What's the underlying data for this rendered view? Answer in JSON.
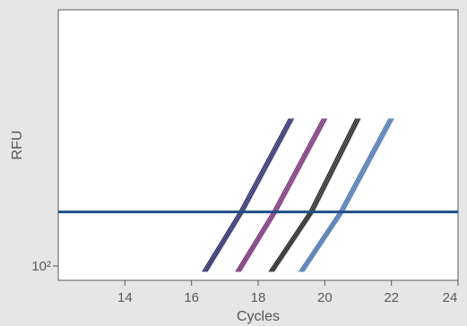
{
  "chart_data": {
    "type": "line",
    "xlabel": "Cycles",
    "ylabel": "RFU",
    "y_scale": "log",
    "xlim": [
      12,
      24
    ],
    "x_ticks": [
      14,
      16,
      18,
      20,
      22,
      24
    ],
    "y_tick": {
      "value": 100,
      "label": "10²"
    },
    "threshold": {
      "y": 270,
      "color": "#1f4f86"
    },
    "grid": false,
    "legend": "none",
    "series": [
      {
        "color": "#14195a",
        "replicates": 6,
        "x": [
          16.4,
          17.5,
          19.0
        ],
        "y": [
          90,
          270,
          1500
        ]
      },
      {
        "color": "#6a1f6a",
        "replicates": 6,
        "x": [
          17.4,
          18.5,
          20.0
        ],
        "y": [
          90,
          270,
          1500
        ]
      },
      {
        "color": "#111111",
        "replicates": 6,
        "x": [
          18.4,
          19.6,
          21.0
        ],
        "y": [
          90,
          270,
          1500
        ]
      },
      {
        "color": "#3a68a8",
        "replicates": 6,
        "x": [
          19.3,
          20.5,
          22.0
        ],
        "y": [
          90,
          270,
          1500
        ]
      }
    ]
  }
}
